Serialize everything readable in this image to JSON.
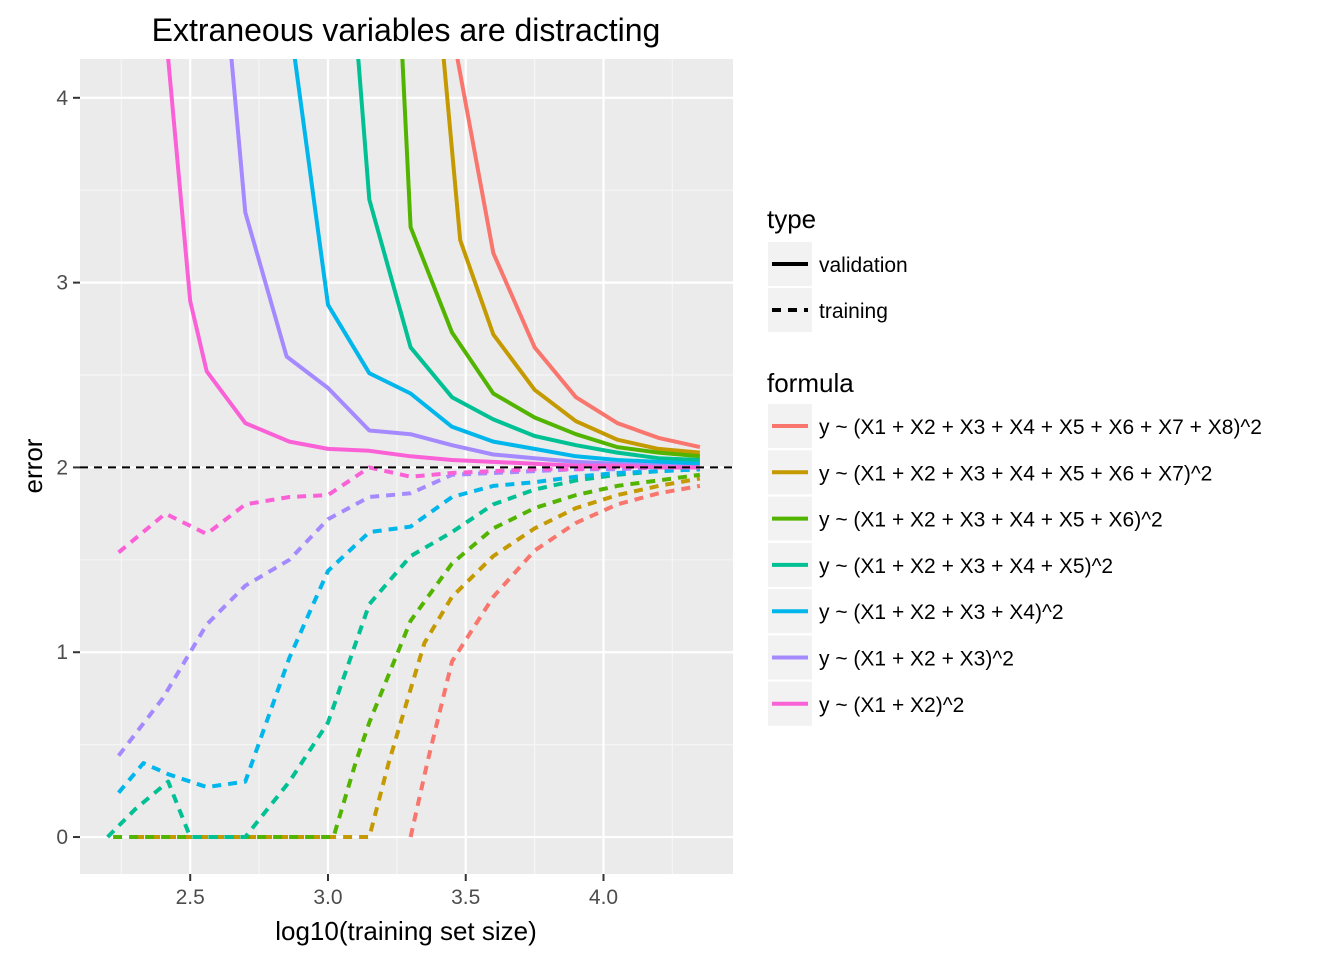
{
  "chart_data": {
    "type": "line",
    "title": "Extraneous variables are distracting",
    "xlabel": "log10(training set size)",
    "ylabel": "error",
    "xlim": [
      2.1,
      4.47
    ],
    "ylim": [
      -0.2,
      4.21
    ],
    "xticks": [
      2.5,
      3.0,
      3.5,
      4.0
    ],
    "xtick_labels": [
      "2.5",
      "3.0",
      "3.5",
      "4.0"
    ],
    "yticks": [
      0,
      1,
      2,
      3,
      4
    ],
    "ytick_labels": [
      "0",
      "1",
      "2",
      "3",
      "4"
    ],
    "grid": true,
    "reference_line": {
      "y": 2,
      "style": "dashed",
      "color": "#000000"
    },
    "legend_type": {
      "title": "type",
      "entries": [
        {
          "label": "validation",
          "style": "solid"
        },
        {
          "label": "training",
          "style": "dashed"
        }
      ]
    },
    "legend_formula": {
      "title": "formula",
      "entries": [
        {
          "label": "y ~ (X1 + X2 + X3 + X4 + X5 + X6 + X7 + X8)^2",
          "color": "#F8766D"
        },
        {
          "label": "y ~ (X1 + X2 + X3 + X4 + X5 + X6 + X7)^2",
          "color": "#C49A00"
        },
        {
          "label": "y ~ (X1 + X2 + X3 + X4 + X5 + X6)^2",
          "color": "#53B400"
        },
        {
          "label": "y ~ (X1 + X2 + X3 + X4 + X5)^2",
          "color": "#00C094"
        },
        {
          "label": "y ~ (X1 + X2 + X3 + X4)^2",
          "color": "#00B6EB"
        },
        {
          "label": "y ~ (X1 + X2 + X3)^2",
          "color": "#A58AFF"
        },
        {
          "label": "y ~ (X1 + X2)^2",
          "color": "#FB61D7"
        }
      ]
    },
    "series": [
      {
        "formula": "y ~ (X1 + X2 + X3 + X4 + X5 + X6 + X7 + X8)^2",
        "type": "validation",
        "color": "#F8766D",
        "points": [
          [
            3.43,
            4.6
          ],
          [
            3.47,
            4.21
          ],
          [
            3.6,
            3.16
          ],
          [
            3.75,
            2.65
          ],
          [
            3.9,
            2.38
          ],
          [
            4.05,
            2.24
          ],
          [
            4.2,
            2.16
          ],
          [
            4.35,
            2.11
          ]
        ]
      },
      {
        "formula": "y ~ (X1 + X2 + X3 + X4 + X5 + X6 + X7 + X8)^2",
        "type": "training",
        "color": "#F8766D",
        "points": [
          [
            3.3,
            0
          ],
          [
            3.36,
            0.4
          ],
          [
            3.45,
            0.95
          ],
          [
            3.6,
            1.3
          ],
          [
            3.75,
            1.55
          ],
          [
            3.9,
            1.7
          ],
          [
            4.05,
            1.8
          ],
          [
            4.2,
            1.86
          ],
          [
            4.35,
            1.9
          ]
        ]
      },
      {
        "formula": "y ~ (X1 + X2 + X3 + X4 + X5 + X6 + X7)^2",
        "type": "validation",
        "color": "#C49A00",
        "points": [
          [
            3.38,
            4.6
          ],
          [
            3.42,
            4.21
          ],
          [
            3.48,
            3.23
          ],
          [
            3.6,
            2.72
          ],
          [
            3.75,
            2.42
          ],
          [
            3.9,
            2.25
          ],
          [
            4.05,
            2.15
          ],
          [
            4.2,
            2.1
          ],
          [
            4.35,
            2.08
          ]
        ]
      },
      {
        "formula": "y ~ (X1 + X2 + X3 + X4 + X5 + X6 + X7)^2",
        "type": "training",
        "color": "#C49A00",
        "points": [
          [
            2.3,
            0
          ],
          [
            3.15,
            0
          ],
          [
            3.22,
            0.4
          ],
          [
            3.35,
            1.05
          ],
          [
            3.45,
            1.3
          ],
          [
            3.6,
            1.52
          ],
          [
            3.75,
            1.67
          ],
          [
            3.9,
            1.78
          ],
          [
            4.05,
            1.85
          ],
          [
            4.2,
            1.9
          ],
          [
            4.35,
            1.94
          ]
        ]
      },
      {
        "formula": "y ~ (X1 + X2 + X3 + X4 + X5 + X6)^2",
        "type": "validation",
        "color": "#53B400",
        "points": [
          [
            3.26,
            4.6
          ],
          [
            3.27,
            4.21
          ],
          [
            3.3,
            3.3
          ],
          [
            3.45,
            2.73
          ],
          [
            3.6,
            2.4
          ],
          [
            3.75,
            2.27
          ],
          [
            3.9,
            2.18
          ],
          [
            4.05,
            2.11
          ],
          [
            4.2,
            2.08
          ],
          [
            4.35,
            2.06
          ]
        ]
      },
      {
        "formula": "y ~ (X1 + X2 + X3 + X4 + X5 + X6)^2",
        "type": "training",
        "color": "#53B400",
        "points": [
          [
            2.22,
            0
          ],
          [
            3.02,
            0
          ],
          [
            3.1,
            0.4
          ],
          [
            3.15,
            0.62
          ],
          [
            3.3,
            1.17
          ],
          [
            3.45,
            1.48
          ],
          [
            3.6,
            1.67
          ],
          [
            3.75,
            1.78
          ],
          [
            3.9,
            1.85
          ],
          [
            4.05,
            1.9
          ],
          [
            4.2,
            1.93
          ],
          [
            4.35,
            1.96
          ]
        ]
      },
      {
        "formula": "y ~ (X1 + X2 + X3 + X4 + X5)^2",
        "type": "validation",
        "color": "#00C094",
        "points": [
          [
            3.1,
            4.6
          ],
          [
            3.11,
            4.21
          ],
          [
            3.15,
            3.45
          ],
          [
            3.3,
            2.65
          ],
          [
            3.45,
            2.38
          ],
          [
            3.6,
            2.26
          ],
          [
            3.75,
            2.17
          ],
          [
            3.9,
            2.12
          ],
          [
            4.05,
            2.08
          ],
          [
            4.2,
            2.05
          ],
          [
            4.35,
            2.04
          ]
        ]
      },
      {
        "formula": "y ~ (X1 + X2 + X3 + X4 + X5)^2",
        "type": "training",
        "color": "#00C094",
        "points": [
          [
            2.2,
            0
          ],
          [
            2.3,
            0.15
          ],
          [
            2.42,
            0.3
          ],
          [
            2.5,
            0
          ],
          [
            2.7,
            0
          ],
          [
            2.86,
            0.3
          ],
          [
            3.0,
            0.62
          ],
          [
            3.15,
            1.26
          ],
          [
            3.3,
            1.52
          ],
          [
            3.45,
            1.65
          ],
          [
            3.6,
            1.8
          ],
          [
            3.75,
            1.88
          ],
          [
            3.9,
            1.93
          ],
          [
            4.05,
            1.96
          ],
          [
            4.2,
            1.98
          ],
          [
            4.35,
            1.99
          ]
        ]
      },
      {
        "formula": "y ~ (X1 + X2 + X3 + X4)^2",
        "type": "validation",
        "color": "#00B6EB",
        "points": [
          [
            2.89,
            4.6
          ],
          [
            2.88,
            4.21
          ],
          [
            3.0,
            2.88
          ],
          [
            3.15,
            2.51
          ],
          [
            3.3,
            2.4
          ],
          [
            3.45,
            2.22
          ],
          [
            3.6,
            2.14
          ],
          [
            3.75,
            2.1
          ],
          [
            3.9,
            2.06
          ],
          [
            4.05,
            2.04
          ],
          [
            4.2,
            2.03
          ],
          [
            4.35,
            2.02
          ]
        ]
      },
      {
        "formula": "y ~ (X1 + X2 + X3 + X4)^2",
        "type": "training",
        "color": "#00B6EB",
        "points": [
          [
            2.24,
            0.24
          ],
          [
            2.33,
            0.4
          ],
          [
            2.42,
            0.34
          ],
          [
            2.56,
            0.27
          ],
          [
            2.7,
            0.3
          ],
          [
            2.86,
            0.97
          ],
          [
            3.0,
            1.44
          ],
          [
            3.15,
            1.65
          ],
          [
            3.3,
            1.68
          ],
          [
            3.45,
            1.84
          ],
          [
            3.6,
            1.9
          ],
          [
            3.75,
            1.92
          ],
          [
            3.9,
            1.95
          ],
          [
            4.05,
            1.97
          ],
          [
            4.2,
            1.98
          ],
          [
            4.35,
            1.99
          ]
        ]
      },
      {
        "formula": "y ~ (X1 + X2 + X3)^2",
        "type": "validation",
        "color": "#A58AFF",
        "points": [
          [
            2.64,
            4.6
          ],
          [
            2.65,
            4.21
          ],
          [
            2.7,
            3.38
          ],
          [
            2.85,
            2.6
          ],
          [
            3.0,
            2.43
          ],
          [
            3.15,
            2.2
          ],
          [
            3.3,
            2.18
          ],
          [
            3.45,
            2.12
          ],
          [
            3.6,
            2.07
          ],
          [
            3.75,
            2.05
          ],
          [
            3.9,
            2.03
          ],
          [
            4.05,
            2.02
          ],
          [
            4.2,
            2.01
          ],
          [
            4.35,
            2.0
          ]
        ]
      },
      {
        "formula": "y ~ (X1 + X2 + X3)^2",
        "type": "training",
        "color": "#A58AFF",
        "points": [
          [
            2.24,
            0.44
          ],
          [
            2.4,
            0.75
          ],
          [
            2.56,
            1.15
          ],
          [
            2.7,
            1.36
          ],
          [
            2.86,
            1.5
          ],
          [
            3.0,
            1.72
          ],
          [
            3.15,
            1.84
          ],
          [
            3.3,
            1.86
          ],
          [
            3.45,
            1.96
          ],
          [
            3.6,
            1.97
          ],
          [
            3.75,
            1.98
          ],
          [
            3.9,
            1.99
          ],
          [
            4.05,
            1.99
          ],
          [
            4.2,
            2.0
          ],
          [
            4.35,
            2.0
          ]
        ]
      },
      {
        "formula": "y ~ (X1 + X2)^2",
        "type": "validation",
        "color": "#FB61D7",
        "points": [
          [
            2.42,
            4.6
          ],
          [
            2.42,
            4.21
          ],
          [
            2.5,
            2.9
          ],
          [
            2.56,
            2.52
          ],
          [
            2.7,
            2.24
          ],
          [
            2.86,
            2.14
          ],
          [
            3.0,
            2.1
          ],
          [
            3.15,
            2.09
          ],
          [
            3.3,
            2.06
          ],
          [
            3.45,
            2.04
          ],
          [
            3.6,
            2.03
          ],
          [
            3.75,
            2.02
          ],
          [
            3.9,
            2.01
          ],
          [
            4.05,
            2.01
          ],
          [
            4.2,
            2.0
          ],
          [
            4.35,
            2.0
          ]
        ]
      },
      {
        "formula": "y ~ (X1 + X2)^2",
        "type": "training",
        "color": "#FB61D7",
        "points": [
          [
            2.24,
            1.54
          ],
          [
            2.41,
            1.75
          ],
          [
            2.56,
            1.64
          ],
          [
            2.7,
            1.8
          ],
          [
            2.86,
            1.84
          ],
          [
            3.0,
            1.85
          ],
          [
            3.15,
            2.0
          ],
          [
            3.3,
            1.95
          ],
          [
            3.45,
            1.97
          ],
          [
            3.6,
            1.98
          ],
          [
            3.75,
            1.99
          ],
          [
            3.9,
            1.99
          ],
          [
            4.05,
            2.0
          ],
          [
            4.2,
            2.0
          ],
          [
            4.35,
            2.0
          ]
        ]
      }
    ]
  }
}
